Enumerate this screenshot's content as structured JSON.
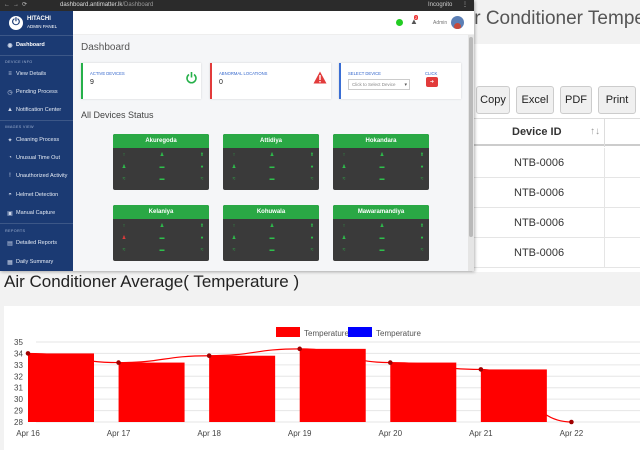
{
  "background_report": {
    "title": "ir Conditioner Tempera",
    "buttons": [
      "Copy",
      "Excel",
      "PDF",
      "Print"
    ],
    "table": {
      "columns": [
        "Device ID"
      ],
      "rows": [
        [
          "NTB-0006"
        ],
        [
          "NTB-0006"
        ],
        [
          "NTB-0006"
        ],
        [
          "NTB-0006"
        ]
      ]
    }
  },
  "browser": {
    "url_host": "dashboard.antimatter.lk",
    "url_path": "/Dashboard",
    "profile": "Incognito"
  },
  "sidebar": {
    "brand": "HITACHI",
    "brand_sub": "ADMIN PANEL",
    "items": [
      {
        "label": "Dashboard",
        "icon": "gauge-icon",
        "active": true
      },
      {
        "heading": "DEVICE INFO"
      },
      {
        "label": "View Details",
        "icon": "list-icon"
      },
      {
        "label": "Pending Process",
        "icon": "clock-icon"
      },
      {
        "label": "Notification Center",
        "icon": "bell-icon"
      },
      {
        "heading": "IMAGES VIEW"
      },
      {
        "label": "Cleaning Process",
        "icon": "broom-icon"
      },
      {
        "label": "Unusual Time Out",
        "icon": "timer-icon"
      },
      {
        "label": "Unauthorized Activity",
        "icon": "warning-icon"
      },
      {
        "label": "Helmet Detection",
        "icon": "helmet-icon"
      },
      {
        "label": "Manual Capture",
        "icon": "camera-icon"
      },
      {
        "heading": "REPORTS"
      },
      {
        "label": "Detailed Reports",
        "icon": "report-icon"
      },
      {
        "label": "Daily Summary",
        "icon": "calendar-icon"
      }
    ]
  },
  "topbar": {
    "notification_count": "2",
    "user_label": "Admin"
  },
  "dashboard": {
    "title": "Dashboard",
    "cards": {
      "active": {
        "label": "ACTIVE DEVICES",
        "value": "9"
      },
      "abnormal": {
        "label": "ABNORMAL LOCATIONS",
        "value": "0"
      },
      "select": {
        "label": "SELECT DEVICE",
        "placeholder": "Click to Select Device",
        "click_label": "CLICK"
      }
    },
    "status_title": "All Devices Status",
    "locations": [
      {
        "name": "Akuregoda",
        "alert": false
      },
      {
        "name": "Attidiya",
        "alert": false
      },
      {
        "name": "Hokandara",
        "alert": false
      },
      {
        "name": "Kelaniya",
        "alert": true
      },
      {
        "name": "Kohuwala",
        "alert": false
      },
      {
        "name": "Mawaramandiya",
        "alert": false
      }
    ]
  },
  "chart_title": "Air Conditioner Average( Temperature )",
  "chart_data": {
    "type": "bar",
    "categories": [
      "Apr 16",
      "Apr 17",
      "Apr 18",
      "Apr 19",
      "Apr 20",
      "Apr 21",
      "Apr 22"
    ],
    "series": [
      {
        "name": "Temperature",
        "type": "bar",
        "color": "#ff0000",
        "values": [
          34.0,
          33.2,
          33.8,
          34.4,
          33.2,
          32.6,
          28.0
        ]
      },
      {
        "name": "Temperature",
        "type": "line",
        "color": "#0000ff",
        "line_color": "#ff0000",
        "values": [
          34.0,
          33.2,
          33.8,
          34.4,
          33.2,
          32.6,
          28.0
        ]
      }
    ],
    "ylim": [
      28,
      35
    ],
    "yticks": [
      28,
      29,
      30,
      31,
      32,
      33,
      34,
      35
    ],
    "legend": "top-center",
    "grid": true
  }
}
